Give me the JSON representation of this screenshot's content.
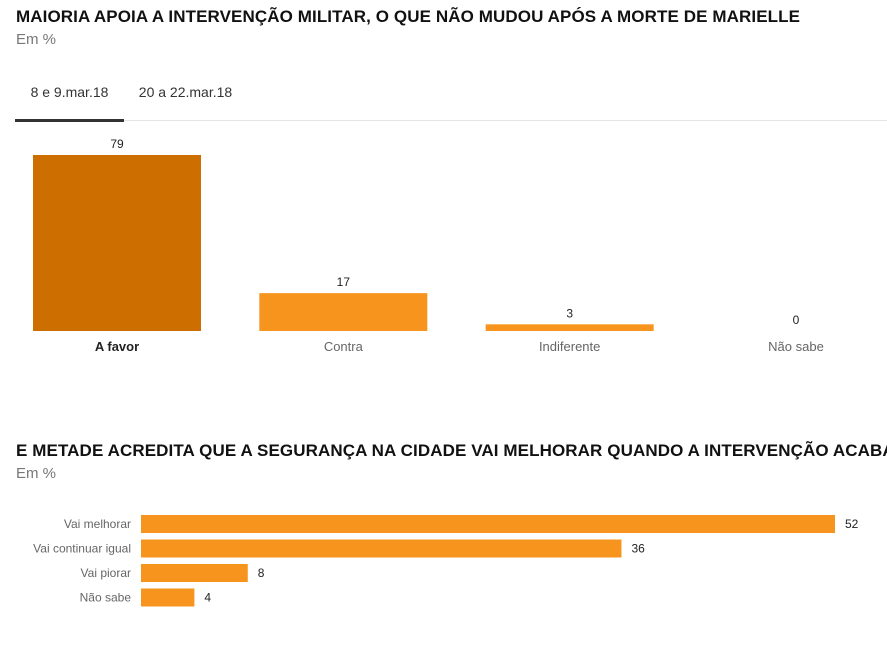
{
  "chart1": {
    "title": "MAIORIA APOIA A INTERVENÇÃO MILITAR, O QUE NÃO MUDOU APÓS A MORTE DE MARIELLE",
    "subtitle": "Em %",
    "tabs": [
      {
        "label": "8 e 9.mar.18",
        "active": true
      },
      {
        "label": "20 a 22.mar.18",
        "active": false
      }
    ]
  },
  "chart2": {
    "title": "E METADE ACREDITA QUE A SEGURANÇA NA CIDADE VAI MELHORAR QUANDO A INTERVENÇÃO ACABAR",
    "subtitle": "Em %"
  },
  "colors": {
    "highlight": "#cc6f00",
    "bar": "#f7941d"
  },
  "chart_data": [
    {
      "type": "bar",
      "title": "MAIORIA APOIA A INTERVENÇÃO MILITAR, O QUE NÃO MUDOU APÓS A MORTE DE MARIELLE",
      "subtitle": "Em %",
      "categories": [
        "A favor",
        "Contra",
        "Indiferente",
        "Não sabe"
      ],
      "values": [
        79,
        17,
        3,
        0
      ],
      "highlight_index": 0,
      "ylim": [
        0,
        79
      ],
      "grid": false
    },
    {
      "type": "bar",
      "orientation": "horizontal",
      "title": "E METADE ACREDITA QUE A SEGURANÇA NA CIDADE VAI MELHORAR QUANDO A INTERVENÇÃO ACABAR",
      "subtitle": "Em %",
      "categories": [
        "Vai melhorar",
        "Vai continuar igual",
        "Vai piorar",
        "Não sabe"
      ],
      "values": [
        52,
        36,
        8,
        4
      ],
      "xlim": [
        0,
        52
      ],
      "grid": false
    }
  ]
}
